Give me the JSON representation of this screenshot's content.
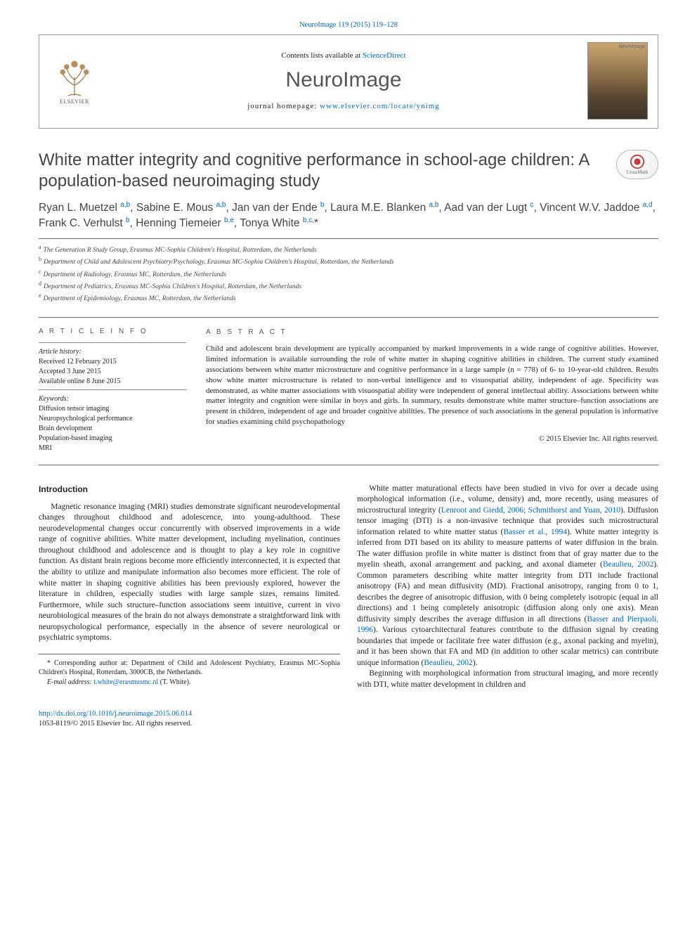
{
  "top": {
    "journal_ref": "NeuroImage 119 (2015) 119–128",
    "contents_prefix": "Contents lists available at ",
    "contents_link": "ScienceDirect",
    "journal_name": "NeuroImage",
    "homepage_prefix": "journal homepage: ",
    "homepage_url": "www.elsevier.com/locate/ynimg",
    "elsevier_label": "ELSEVIER",
    "cover_label": "NeuroImage",
    "crossmark_label": "CrossMark"
  },
  "article": {
    "title": "White matter integrity and cognitive performance in school-age children: A population-based neuroimaging study",
    "authors_html": "Ryan L. Muetzel <sup>a,b</sup>, Sabine E. Mous <sup>a,b</sup>, Jan van der Ende <sup>b</sup>, Laura M.E. Blanken <sup>a,b</sup>, Aad van der Lugt <sup>c</sup>, Vincent W.V. Jaddoe <sup>a,d</sup>, Frank C. Verhulst <sup>b</sup>, Henning Tiemeier <sup>b,e</sup>, Tonya White <sup>b,c,</sup>*",
    "affiliations": [
      {
        "key": "a",
        "text": "The Generation R Study Group, Erasmus MC-Sophia Children's Hospital, Rotterdam, the Netherlands"
      },
      {
        "key": "b",
        "text": "Department of Child and Adolescent Psychiatry/Psychology, Erasmus MC-Sophia Children's Hospital, Rotterdam, the Netherlands"
      },
      {
        "key": "c",
        "text": "Department of Radiology, Erasmus MC, Rotterdam, the Netherlands"
      },
      {
        "key": "d",
        "text": "Department of Pediatrics, Erasmus MC-Sophia Children's Hospital, Rotterdam, the Netherlands"
      },
      {
        "key": "e",
        "text": "Department of Epidemiology, Erasmus MC, Rotterdam, the Netherlands"
      }
    ]
  },
  "info": {
    "heading": "A R T I C L E   I N F O",
    "history_label": "Article history:",
    "received": "Received 12 February 2015",
    "accepted": "Accepted 3 June 2015",
    "online": "Available online 8 June 2015",
    "keywords_label": "Keywords:",
    "keywords": [
      "Diffusion tensor imaging",
      "Neuropsychological performance",
      "Brain development",
      "Population-based imaging",
      "MRI"
    ]
  },
  "abstract": {
    "heading": "A B S T R A C T",
    "text": "Child and adolescent brain development are typically accompanied by marked improvements in a wide range of cognitive abilities. However, limited information is available surrounding the role of white matter in shaping cognitive abilities in children. The current study examined associations between white matter microstructure and cognitive performance in a large sample (n = 778) of 6- to 10-year-old children. Results show white matter microstructure is related to non-verbal intelligence and to visuospatial ability, independent of age. Specificity was demonstrated, as white matter associations with visuospatial ability were independent of general intellectual ability. Associations between white matter integrity and cognition were similar in boys and girls. In summary, results demonstrate white matter structure–function associations are present in children, independent of age and broader cognitive abilities. The presence of such associations in the general population is informative for studies examining child psychopathology",
    "copyright": "© 2015 Elsevier Inc. All rights reserved."
  },
  "body": {
    "intro_heading": "Introduction",
    "p1": "Magnetic resonance imaging (MRI) studies demonstrate significant neurodevelopmental changes throughout childhood and adolescence, into young-adulthood. These neurodevelopmental changes occur concurrently with observed improvements in a wide range of cognitive abilities. White matter development, including myelination, continues throughout childhood and adolescence and is thought to play a key role in cognitive function. As distant brain regions become more efficiently interconnected, it is expected that the ability to utilize and manipulate information also becomes more efficient. The role of white matter in shaping cognitive abilities has been previously explored, however the literature in children, especially studies with large sample sizes, remains limited. Furthermore, while such structure–function associations seem intuitive, current in vivo neurobiological measures of the brain do not always demonstrate a straightforward link with neuropsychological performance, especially in the absence of severe neurological or psychiatric symptoms.",
    "p2a": "White matter maturational effects have been studied in vivo for over a decade using morphological information (i.e., volume, density) and, more recently, using measures of microstructural integrity (",
    "p2_link1": "Lenroot and Giedd, 2006; Schmithorst and Yuan, 2010",
    "p2b": "). Diffusion tensor imaging (DTI) is a non-invasive technique that provides such microstructural information related to white matter status (",
    "p2_link2": "Basser et al., 1994",
    "p2c": "). White matter integrity is inferred from DTI based on its ability to measure patterns of water diffusion in the brain. The water diffusion profile in white matter is distinct from that of gray matter due to the myelin sheath, axonal arrangement and packing, and axonal diameter (",
    "p2_link3": "Beaulieu, 2002",
    "p2d": "). Common parameters describing white matter integrity from DTI include fractional anisotropy (FA) and mean diffusivity (MD). Fractional anisotropy, ranging from 0 to 1, describes the degree of anisotropic diffusion, with 0 being completely isotropic (equal in all directions) and 1 being completely anisotropic (diffusion along only one axis). Mean diffusivity simply describes the average diffusion in all directions (",
    "p2_link4": "Basser and Pierpaoli, 1996",
    "p2e": "). Various cytoarchitectural features contribute to the diffusion signal by creating boundaries that impede or facilitate free water diffusion (e.g., axonal packing and myelin), and it has been shown that FA and MD (in addition to other scalar metrics) can contribute unique information (",
    "p2_link5": "Beaulieu, 2002",
    "p2f": ").",
    "p3": "Beginning with morphological information from structural imaging, and more recently with DTI, white matter development in children and"
  },
  "footnote": {
    "corr": "* Corresponding author at: Department of Child and Adolescent Psychiatry, Erasmus MC-Sophia Children's Hospital, Rotterdam, 3000CB, the Netherlands.",
    "email_label": "E-mail address: ",
    "email": "t.white@erasmusmc.nl",
    "email_person": " (T. White)."
  },
  "footer": {
    "doi": "http://dx.doi.org/10.1016/j.neuroimage.2015.06.014",
    "issn_line": "1053-8119/© 2015 Elsevier Inc. All rights reserved."
  },
  "colors": {
    "link": "#0066cc",
    "rule": "#666666",
    "heading": "#444444"
  }
}
